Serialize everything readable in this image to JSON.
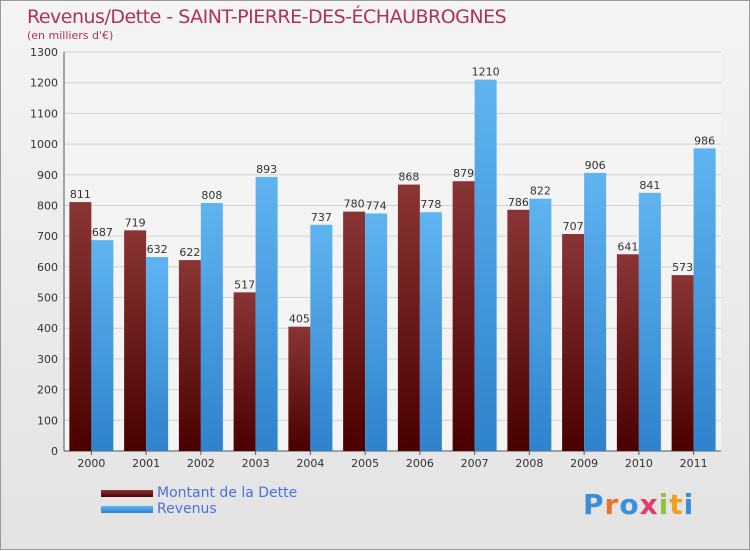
{
  "title": "Revenus/Dette - SAINT-PIERRE-DES-ÉCHAUBROGNES",
  "subtitle": "(en milliers d'€)",
  "chart_data": {
    "type": "bar",
    "categories": [
      "2000",
      "2001",
      "2002",
      "2003",
      "2004",
      "2005",
      "2006",
      "2007",
      "2008",
      "2009",
      "2010",
      "2011"
    ],
    "series": [
      {
        "name": "Montant de la Dette",
        "values": [
          811,
          719,
          622,
          517,
          405,
          780,
          868,
          879,
          786,
          707,
          641,
          573
        ],
        "color": "#7a1a1a"
      },
      {
        "name": "Revenus",
        "values": [
          687,
          632,
          808,
          893,
          737,
          774,
          778,
          1210,
          822,
          906,
          841,
          986
        ],
        "color": "#4aa3e6"
      }
    ],
    "ylim": [
      0,
      1300
    ],
    "yticks": [
      0,
      100,
      200,
      300,
      400,
      500,
      600,
      700,
      800,
      900,
      1000,
      1100,
      1200,
      1300
    ],
    "grid": true,
    "legend_position": "bottom-left"
  },
  "logo": {
    "letters": [
      "P",
      "r",
      "o",
      "x",
      "i",
      "t",
      "i"
    ],
    "colors": [
      "#3a8fd8",
      "#e8762a",
      "#3a8fd8",
      "#e23a6a",
      "#8cc63f",
      "#f0a020",
      "#3a8fd8"
    ]
  }
}
